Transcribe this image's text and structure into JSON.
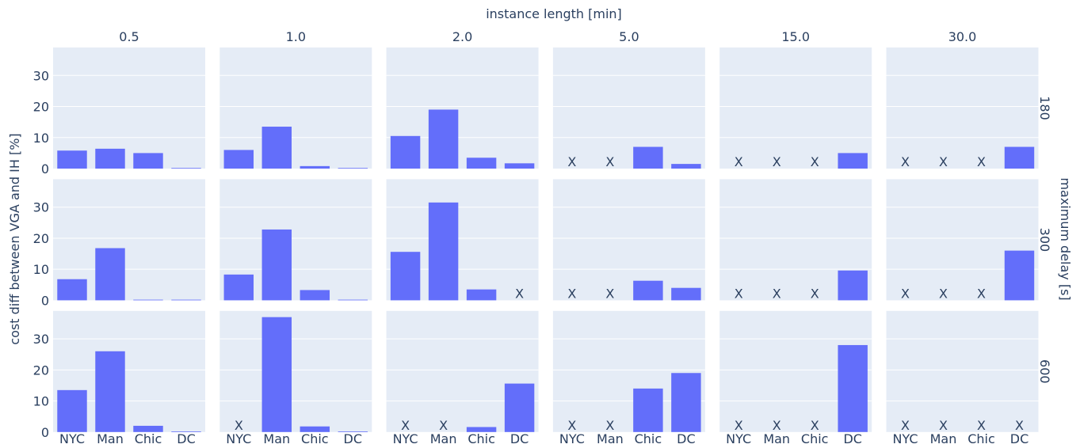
{
  "colors": {
    "bar": "#636efa",
    "panel_bg": "#e5ecf6",
    "grid": "#ffffff",
    "text": "#2a3f5f"
  },
  "chart_data": {
    "type": "bar",
    "layout": "facet-grid",
    "title_top": "instance length [min]",
    "ylabel": "cost diff between VGA and IH [%]",
    "row_title": "maximum delay [s]",
    "categories": [
      "NYC",
      "Man",
      "Chic",
      "DC"
    ],
    "yticks": [
      0,
      10,
      20,
      30
    ],
    "ylim": [
      0,
      39
    ],
    "missing_marker": "X",
    "columns": [
      "0.5",
      "1.0",
      "2.0",
      "5.0",
      "15.0",
      "30.0"
    ],
    "rows": [
      "180",
      "300",
      "600"
    ],
    "panels": [
      [
        {
          "values": [
            5.8,
            6.4,
            5.0,
            0.2
          ]
        },
        {
          "values": [
            6.0,
            13.5,
            0.8,
            0.2
          ]
        },
        {
          "values": [
            10.5,
            19.0,
            3.5,
            1.7
          ]
        },
        {
          "values": [
            null,
            null,
            7.0,
            1.5
          ]
        },
        {
          "values": [
            null,
            null,
            null,
            5.0
          ]
        },
        {
          "values": [
            null,
            null,
            null,
            7.0
          ]
        }
      ],
      [
        {
          "values": [
            6.8,
            16.8,
            0.2,
            0.2
          ]
        },
        {
          "values": [
            8.3,
            22.8,
            3.3,
            0.2
          ]
        },
        {
          "values": [
            15.6,
            31.5,
            3.5,
            null
          ]
        },
        {
          "values": [
            null,
            null,
            6.3,
            4.0
          ]
        },
        {
          "values": [
            null,
            null,
            null,
            9.6
          ]
        },
        {
          "values": [
            null,
            null,
            null,
            16.0
          ]
        }
      ],
      [
        {
          "values": [
            13.5,
            26.0,
            2.0,
            0.2
          ]
        },
        {
          "values": [
            null,
            37.0,
            1.8,
            0.2
          ]
        },
        {
          "values": [
            null,
            null,
            1.6,
            15.6
          ]
        },
        {
          "values": [
            null,
            null,
            14.0,
            19.0
          ]
        },
        {
          "values": [
            null,
            null,
            null,
            28.0
          ]
        },
        {
          "values": [
            null,
            null,
            null,
            null
          ]
        }
      ]
    ]
  }
}
